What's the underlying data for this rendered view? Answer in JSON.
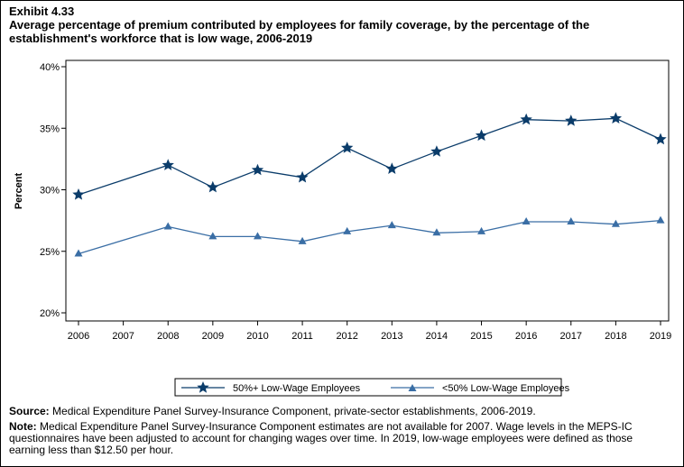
{
  "exhibit": "Exhibit 4.33",
  "title": "Average percentage of premium contributed by employees for family coverage, by the percentage of the establishment's workforce that is low wage, 2006-2019",
  "source_label": "Source:",
  "source_text": "Medical Expenditure Panel Survey-Insurance Component, private-sector establishments, 2006-2019.",
  "note_label": "Note:",
  "note_text": "Medical Expenditure Panel Survey-Insurance Component estimates are not available for 2007. Wage levels in the MEPS-IC questionnaires have been adjusted to account for changing wages over time.  In 2019, low-wage employees were defined as those earning less than $12.50 per hour.",
  "chart_data": {
    "type": "line",
    "ylabel": "Percent",
    "xlabel": "",
    "x_ticks": [
      "2006",
      "2007",
      "2008",
      "2009",
      "2010",
      "2011",
      "2012",
      "2013",
      "2014",
      "2015",
      "2016",
      "2017",
      "2018",
      "2019"
    ],
    "y_ticks": [
      "20%",
      "25%",
      "30%",
      "35%",
      "40%"
    ],
    "ylim": [
      20,
      40
    ],
    "grid": false,
    "legend_position": "bottom",
    "series": [
      {
        "name": "50%+ Low-Wage Employees",
        "marker": "star",
        "color": "#0b3c6a",
        "x": [
          2006,
          2008,
          2009,
          2010,
          2011,
          2012,
          2013,
          2014,
          2015,
          2016,
          2017,
          2018,
          2019
        ],
        "values": [
          29.6,
          32.0,
          30.2,
          31.6,
          31.0,
          33.4,
          31.7,
          33.1,
          34.4,
          35.7,
          35.6,
          35.8,
          34.1
        ]
      },
      {
        "name": "<50% Low-Wage Employees",
        "marker": "triangle",
        "color": "#3a6ea5",
        "x": [
          2006,
          2008,
          2009,
          2010,
          2011,
          2012,
          2013,
          2014,
          2015,
          2016,
          2017,
          2018,
          2019
        ],
        "values": [
          24.8,
          27.0,
          26.2,
          26.2,
          25.8,
          26.6,
          27.1,
          26.5,
          26.6,
          27.4,
          27.4,
          27.2,
          27.5
        ]
      }
    ]
  }
}
